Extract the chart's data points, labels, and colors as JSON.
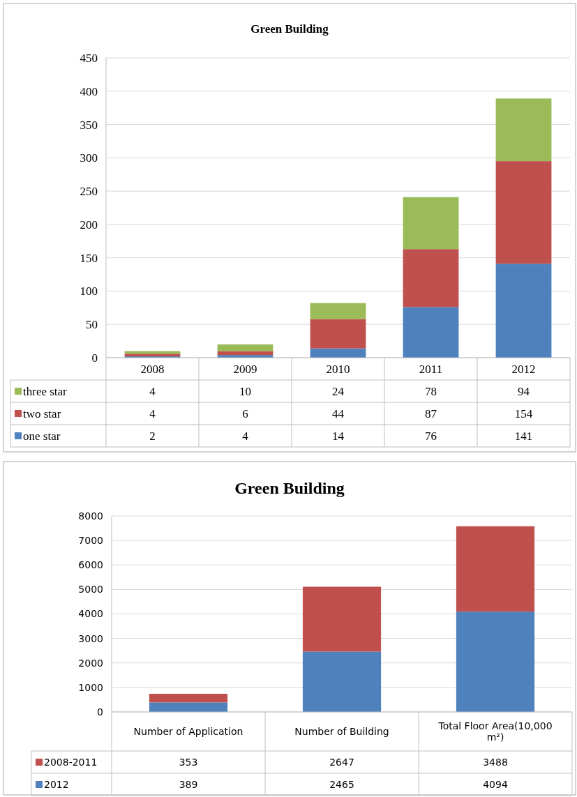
{
  "chart_data": [
    {
      "type": "bar",
      "title": "Green Building",
      "categories": [
        "2008",
        "2009",
        "2010",
        "2011",
        "2012"
      ],
      "stacked": true,
      "series": [
        {
          "name": "one star",
          "color": "#4f81bd",
          "values": [
            2,
            4,
            14,
            76,
            141
          ]
        },
        {
          "name": "two star",
          "color": "#c0504d",
          "values": [
            4,
            6,
            44,
            87,
            154
          ]
        },
        {
          "name": "three star",
          "color": "#9bbb59",
          "values": [
            4,
            10,
            24,
            78,
            94
          ]
        }
      ],
      "ylim": [
        0,
        450
      ],
      "yticks": [
        0,
        50,
        100,
        150,
        200,
        250,
        300,
        350,
        400,
        450
      ],
      "grid": "y",
      "legend": "bottom",
      "data_labels": true
    },
    {
      "type": "bar",
      "title": "Green Building",
      "categories": [
        "Number of Application",
        "Number of Building",
        "Total Floor Area(10,000 m²)"
      ],
      "stacked": true,
      "series": [
        {
          "name": "2012",
          "color": "#4f81bd",
          "values": [
            389,
            2465,
            4094
          ]
        },
        {
          "name": "2008-2011",
          "color": "#c0504d",
          "values": [
            353,
            2647,
            3488
          ]
        }
      ],
      "ylim": [
        0,
        8000
      ],
      "yticks": [
        0,
        1000,
        2000,
        3000,
        4000,
        5000,
        6000,
        7000,
        8000
      ],
      "grid": "y",
      "legend": "bottom",
      "data_labels": true
    }
  ]
}
